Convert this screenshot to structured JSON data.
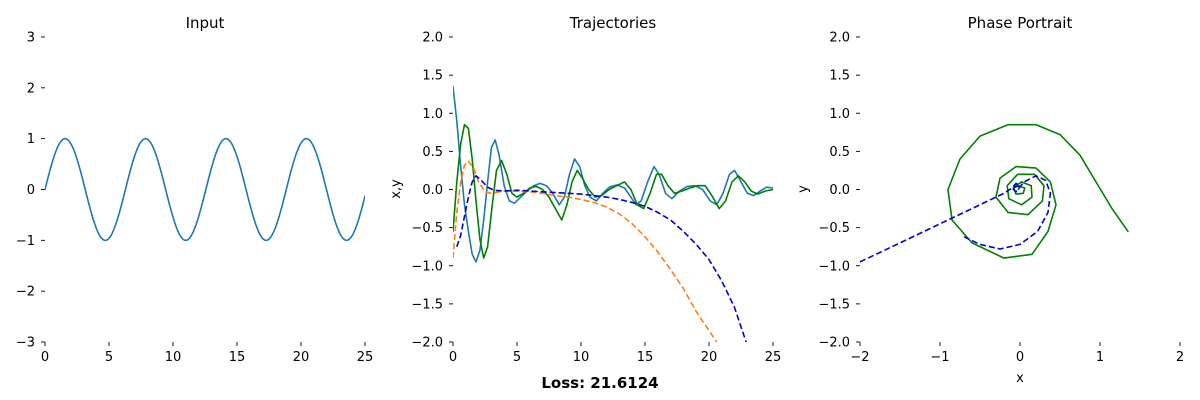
{
  "figure": {
    "suptitle": "Loss: 21.6124",
    "colors": {
      "blue": "#1f77b4",
      "orange": "#ff7f0e",
      "green": "#008000",
      "darkblue": "#0000cc"
    }
  },
  "chart_data": [
    {
      "type": "line",
      "title": "Input",
      "xlabel": "",
      "ylabel": "",
      "xlim": [
        0,
        25
      ],
      "ylim": [
        -3,
        3
      ],
      "xticks": [
        0,
        5,
        10,
        15,
        20,
        25
      ],
      "yticks": [
        -3,
        -2,
        -1,
        0,
        1,
        2,
        3
      ],
      "grid": false,
      "series": [
        {
          "function": "sin(t)",
          "t_range": [
            0,
            25
          ],
          "color": "#1f77b4",
          "style": "solid"
        }
      ]
    },
    {
      "type": "line",
      "title": "Trajectories",
      "xlabel": "",
      "ylabel": "x,y",
      "xlim": [
        0,
        25
      ],
      "ylim": [
        -2,
        2
      ],
      "xticks": [
        0,
        5,
        10,
        15,
        20,
        25
      ],
      "yticks": [
        -2.0,
        -1.5,
        -1.0,
        -0.5,
        0.0,
        0.5,
        1.0,
        1.5,
        2.0
      ],
      "grid": false,
      "series": [
        {
          "color": "#1f77b4",
          "style": "solid",
          "points": [
            [
              0,
              1.35
            ],
            [
              0.3,
              0.9
            ],
            [
              0.6,
              0.3
            ],
            [
              0.9,
              -0.2
            ],
            [
              1.2,
              -0.55
            ],
            [
              1.5,
              -0.85
            ],
            [
              1.8,
              -0.95
            ],
            [
              2.1,
              -0.8
            ],
            [
              2.4,
              -0.4
            ],
            [
              2.7,
              0.1
            ],
            [
              3.0,
              0.55
            ],
            [
              3.3,
              0.65
            ],
            [
              3.6,
              0.45
            ],
            [
              4.0,
              0.05
            ],
            [
              4.4,
              -0.15
            ],
            [
              4.8,
              -0.18
            ],
            [
              5.3,
              -0.1
            ],
            [
              5.8,
              -0.02
            ],
            [
              6.3,
              0.05
            ],
            [
              6.8,
              0.08
            ],
            [
              7.3,
              0.05
            ],
            [
              7.8,
              -0.05
            ],
            [
              8.3,
              -0.2
            ],
            [
              8.7,
              -0.1
            ],
            [
              9.1,
              0.2
            ],
            [
              9.5,
              0.4
            ],
            [
              9.9,
              0.3
            ],
            [
              10.3,
              0.05
            ],
            [
              10.7,
              -0.1
            ],
            [
              11.2,
              -0.15
            ],
            [
              11.7,
              -0.05
            ],
            [
              12.2,
              0.03
            ],
            [
              12.8,
              0.06
            ],
            [
              13.4,
              0.02
            ],
            [
              13.9,
              -0.1
            ],
            [
              14.3,
              -0.2
            ],
            [
              14.7,
              -0.15
            ],
            [
              15.2,
              0.1
            ],
            [
              15.7,
              0.3
            ],
            [
              16.1,
              0.2
            ],
            [
              16.6,
              -0.05
            ],
            [
              17.1,
              -0.12
            ],
            [
              17.7,
              -0.02
            ],
            [
              18.3,
              0.04
            ],
            [
              18.9,
              0.05
            ],
            [
              19.5,
              0.0
            ],
            [
              20.1,
              -0.15
            ],
            [
              20.6,
              -0.2
            ],
            [
              21.1,
              -0.05
            ],
            [
              21.6,
              0.2
            ],
            [
              22.0,
              0.25
            ],
            [
              22.5,
              0.1
            ],
            [
              23.0,
              -0.05
            ],
            [
              23.5,
              -0.08
            ],
            [
              24.0,
              -0.02
            ],
            [
              24.5,
              0.03
            ],
            [
              25,
              0.02
            ]
          ]
        },
        {
          "color": "#008000",
          "style": "solid",
          "points": [
            [
              0,
              -0.55
            ],
            [
              0.3,
              0.1
            ],
            [
              0.6,
              0.6
            ],
            [
              0.9,
              0.85
            ],
            [
              1.2,
              0.8
            ],
            [
              1.5,
              0.4
            ],
            [
              1.8,
              -0.15
            ],
            [
              2.1,
              -0.65
            ],
            [
              2.4,
              -0.9
            ],
            [
              2.7,
              -0.75
            ],
            [
              3.0,
              -0.3
            ],
            [
              3.4,
              0.25
            ],
            [
              3.8,
              0.38
            ],
            [
              4.2,
              0.2
            ],
            [
              4.6,
              -0.05
            ],
            [
              5.0,
              -0.1
            ],
            [
              5.5,
              -0.05
            ],
            [
              6.0,
              0.02
            ],
            [
              6.5,
              0.04
            ],
            [
              7.0,
              0.0
            ],
            [
              7.5,
              -0.1
            ],
            [
              8.0,
              -0.25
            ],
            [
              8.5,
              -0.4
            ],
            [
              8.9,
              -0.2
            ],
            [
              9.3,
              0.1
            ],
            [
              9.7,
              0.25
            ],
            [
              10.1,
              0.15
            ],
            [
              10.6,
              0.0
            ],
            [
              11.1,
              -0.1
            ],
            [
              11.6,
              -0.08
            ],
            [
              12.2,
              0.0
            ],
            [
              12.8,
              0.05
            ],
            [
              13.4,
              0.1
            ],
            [
              13.9,
              0.0
            ],
            [
              14.4,
              -0.2
            ],
            [
              14.9,
              -0.25
            ],
            [
              15.4,
              -0.05
            ],
            [
              15.9,
              0.2
            ],
            [
              16.3,
              0.2
            ],
            [
              16.8,
              0.05
            ],
            [
              17.3,
              -0.05
            ],
            [
              17.9,
              -0.02
            ],
            [
              18.5,
              0.02
            ],
            [
              19.1,
              0.05
            ],
            [
              19.7,
              0.05
            ],
            [
              20.3,
              -0.1
            ],
            [
              20.8,
              -0.25
            ],
            [
              21.3,
              -0.15
            ],
            [
              21.8,
              0.1
            ],
            [
              22.3,
              0.18
            ],
            [
              22.8,
              0.1
            ],
            [
              23.3,
              -0.02
            ],
            [
              23.8,
              -0.06
            ],
            [
              24.4,
              -0.02
            ],
            [
              25,
              0.0
            ]
          ]
        },
        {
          "color": "#ff7f0e",
          "style": "dashed",
          "points": [
            [
              0,
              -0.9
            ],
            [
              0.3,
              -0.3
            ],
            [
              0.6,
              0.1
            ],
            [
              0.9,
              0.32
            ],
            [
              1.2,
              0.37
            ],
            [
              1.6,
              0.28
            ],
            [
              2.0,
              0.1
            ],
            [
              2.5,
              -0.03
            ],
            [
              3.0,
              -0.05
            ],
            [
              4.0,
              -0.02
            ],
            [
              5.0,
              -0.02
            ],
            [
              6.0,
              -0.03
            ],
            [
              7.0,
              -0.05
            ],
            [
              8.0,
              -0.08
            ],
            [
              9.0,
              -0.1
            ],
            [
              10.0,
              -0.13
            ],
            [
              11.0,
              -0.17
            ],
            [
              12.0,
              -0.23
            ],
            [
              13.0,
              -0.32
            ],
            [
              14.0,
              -0.45
            ],
            [
              15.0,
              -0.62
            ],
            [
              16.0,
              -0.82
            ],
            [
              17.0,
              -1.05
            ],
            [
              18.0,
              -1.3
            ],
            [
              19.0,
              -1.6
            ],
            [
              20.0,
              -1.85
            ],
            [
              20.6,
              -2.0
            ]
          ]
        },
        {
          "color": "#0000cc",
          "style": "dashed",
          "points": [
            [
              0.3,
              -0.75
            ],
            [
              0.6,
              -0.6
            ],
            [
              0.9,
              -0.35
            ],
            [
              1.2,
              -0.1
            ],
            [
              1.5,
              0.1
            ],
            [
              1.8,
              0.18
            ],
            [
              2.2,
              0.12
            ],
            [
              2.7,
              0.03
            ],
            [
              3.2,
              -0.01
            ],
            [
              4.0,
              -0.02
            ],
            [
              5.0,
              -0.01
            ],
            [
              6.0,
              -0.02
            ],
            [
              7.0,
              -0.03
            ],
            [
              8.0,
              -0.04
            ],
            [
              9.0,
              -0.05
            ],
            [
              10.0,
              -0.06
            ],
            [
              11.0,
              -0.08
            ],
            [
              12.0,
              -0.1
            ],
            [
              13.0,
              -0.13
            ],
            [
              14.0,
              -0.17
            ],
            [
              15.0,
              -0.22
            ],
            [
              16.0,
              -0.3
            ],
            [
              17.0,
              -0.4
            ],
            [
              18.0,
              -0.55
            ],
            [
              19.0,
              -0.72
            ],
            [
              20.0,
              -0.92
            ],
            [
              21.0,
              -1.2
            ],
            [
              22.0,
              -1.55
            ],
            [
              22.9,
              -2.0
            ]
          ]
        }
      ]
    },
    {
      "type": "line",
      "title": "Phase Portrait",
      "xlabel": "x",
      "ylabel": "y",
      "xlim": [
        -2,
        2
      ],
      "ylim": [
        -2,
        2
      ],
      "xticks": [
        -2,
        -1,
        0,
        1,
        2
      ],
      "yticks": [
        -2.0,
        -1.5,
        -1.0,
        -0.5,
        0.0,
        0.5,
        1.0,
        1.5,
        2.0
      ],
      "grid": false,
      "series": [
        {
          "color": "#008000",
          "style": "solid",
          "points": [
            [
              1.35,
              -0.55
            ],
            [
              1.15,
              -0.25
            ],
            [
              0.95,
              0.1
            ],
            [
              0.75,
              0.45
            ],
            [
              0.5,
              0.72
            ],
            [
              0.2,
              0.85
            ],
            [
              -0.15,
              0.85
            ],
            [
              -0.5,
              0.7
            ],
            [
              -0.75,
              0.4
            ],
            [
              -0.9,
              0.0
            ],
            [
              -0.85,
              -0.4
            ],
            [
              -0.6,
              -0.7
            ],
            [
              -0.2,
              -0.9
            ],
            [
              0.15,
              -0.85
            ],
            [
              0.35,
              -0.55
            ],
            [
              0.45,
              -0.2
            ],
            [
              0.38,
              0.1
            ],
            [
              0.2,
              0.28
            ],
            [
              -0.05,
              0.3
            ],
            [
              -0.25,
              0.15
            ],
            [
              -0.3,
              -0.1
            ],
            [
              -0.15,
              -0.3
            ],
            [
              0.1,
              -0.33
            ],
            [
              0.28,
              -0.15
            ],
            [
              0.3,
              0.05
            ],
            [
              0.18,
              0.2
            ],
            [
              -0.03,
              0.2
            ],
            [
              -0.16,
              0.05
            ],
            [
              -0.14,
              -0.12
            ],
            [
              0.02,
              -0.2
            ],
            [
              0.15,
              -0.1
            ],
            [
              0.14,
              0.05
            ],
            [
              0.02,
              0.1
            ],
            [
              -0.08,
              0.03
            ],
            [
              -0.05,
              -0.06
            ],
            [
              0.04,
              -0.05
            ],
            [
              0.06,
              0.02
            ],
            [
              0.0,
              0.04
            ],
            [
              -0.02,
              0.0
            ]
          ]
        },
        {
          "color": "#0000cc",
          "style": "dashed",
          "points": [
            [
              -2.0,
              -0.95
            ],
            [
              -1.7,
              -0.8
            ],
            [
              -1.3,
              -0.6
            ],
            [
              -1.0,
              -0.45
            ],
            [
              -0.8,
              -0.35
            ],
            [
              -0.6,
              -0.25
            ],
            [
              -0.4,
              -0.15
            ],
            [
              -0.2,
              -0.05
            ],
            [
              -0.1,
              0.02
            ],
            [
              0.0,
              0.05
            ],
            [
              -0.05,
              0.08
            ],
            [
              -0.1,
              0.02
            ],
            [
              -0.05,
              -0.03
            ],
            [
              0.05,
              0.1
            ],
            [
              0.2,
              0.18
            ],
            [
              0.32,
              0.12
            ],
            [
              0.38,
              -0.05
            ],
            [
              0.35,
              -0.3
            ],
            [
              0.22,
              -0.55
            ],
            [
              0.0,
              -0.72
            ],
            [
              -0.25,
              -0.78
            ],
            [
              -0.5,
              -0.72
            ],
            [
              -0.7,
              -0.62
            ]
          ]
        }
      ]
    }
  ]
}
